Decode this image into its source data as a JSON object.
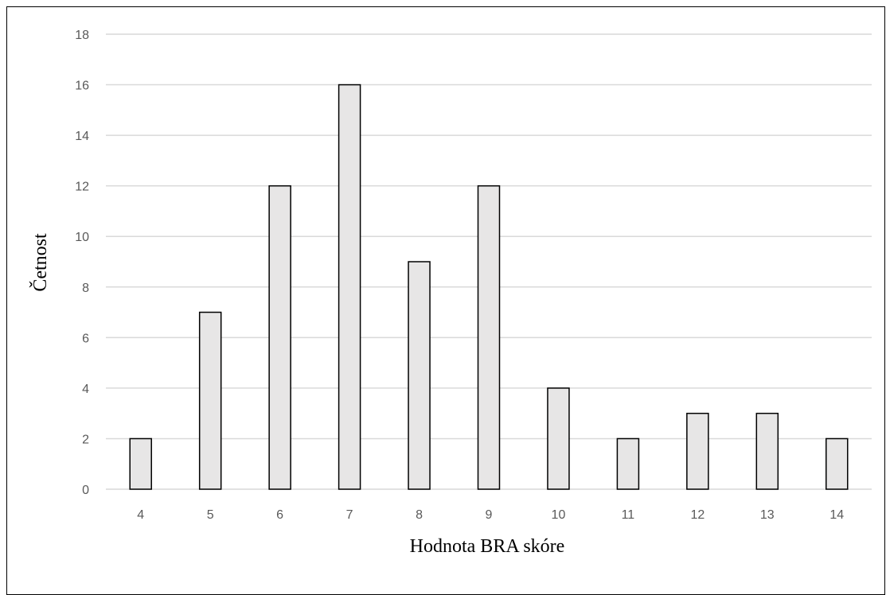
{
  "chart_data": {
    "type": "bar",
    "title": "",
    "xlabel": "Hodnota BRA skóre",
    "ylabel": "Četnost",
    "categories": [
      "4",
      "5",
      "6",
      "7",
      "8",
      "9",
      "10",
      "11",
      "12",
      "13",
      "14"
    ],
    "values": [
      2,
      7,
      12,
      16,
      9,
      12,
      4,
      2,
      3,
      3,
      2
    ],
    "ylim": [
      0,
      18
    ],
    "yticks": [
      "0",
      "2",
      "4",
      "6",
      "8",
      "10",
      "12",
      "14",
      "16",
      "18"
    ],
    "grid": true,
    "legend": "none",
    "colors": {
      "bar_fill": "#e7e6e6",
      "bar_stroke": "#000000",
      "grid": "#d9d9d9",
      "tick_text": "#595959"
    }
  }
}
